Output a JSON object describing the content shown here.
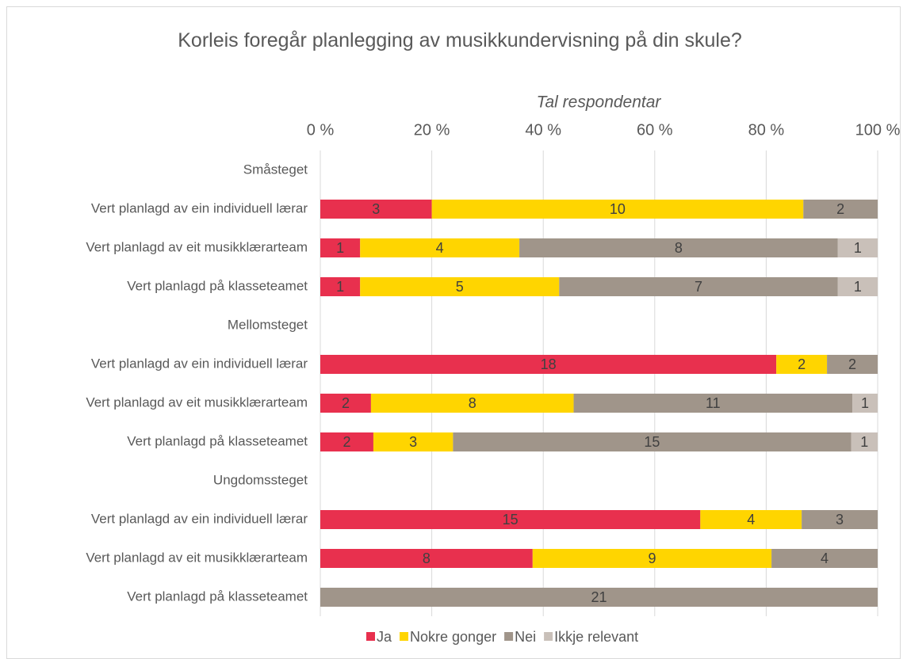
{
  "chart_data": {
    "type": "bar",
    "orientation": "horizontal",
    "stacked": "percent",
    "title": "Korleis foregår planlegging av musikkundervisning på din skule?",
    "x_label": "Tal respondentar",
    "categories": [
      "Småsteget",
      "Vert planlagd av ein individuell lærar",
      "Vert planlagd av eit musikklærarteam",
      "Vert planlagd på klasseteamet",
      "Mellomsteget",
      "Vert planlagd av ein individuell lærar",
      "Vert planlagd av eit musikklærarteam",
      "Vert planlagd på klasseteamet",
      "Ungdomssteget",
      "Vert planlagd av ein individuell lærar",
      "Vert planlagd av eit musikklærarteam",
      "Vert planlagd på klasseteamet"
    ],
    "series": [
      {
        "name": "Ja",
        "color": "#e8304e",
        "values": [
          null,
          3,
          1,
          1,
          null,
          18,
          2,
          2,
          null,
          15,
          8,
          null
        ]
      },
      {
        "name": "Nokre gonger",
        "color": "#ffd500",
        "values": [
          null,
          10,
          4,
          5,
          null,
          2,
          8,
          3,
          null,
          4,
          9,
          null
        ]
      },
      {
        "name": "Nei",
        "color": "#a0958a",
        "values": [
          null,
          2,
          8,
          7,
          null,
          2,
          11,
          15,
          null,
          3,
          4,
          21
        ]
      },
      {
        "name": "Ikkje relevant",
        "color": "#c9c0b9",
        "values": [
          null,
          null,
          1,
          1,
          null,
          null,
          1,
          1,
          null,
          null,
          null,
          null
        ]
      }
    ],
    "xlim": [
      0,
      100
    ],
    "xticks": [
      {
        "value": 0,
        "label": "0 %"
      },
      {
        "value": 20,
        "label": "20 %"
      },
      {
        "value": 40,
        "label": "40 %"
      },
      {
        "value": 60,
        "label": "60 %"
      },
      {
        "value": 80,
        "label": "80 %"
      },
      {
        "value": 100,
        "label": "100 %"
      }
    ],
    "grid": true,
    "legend": "bottom"
  }
}
